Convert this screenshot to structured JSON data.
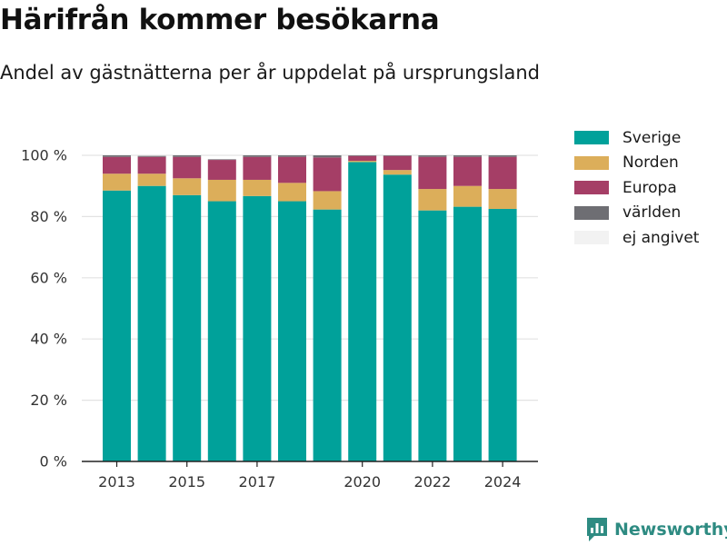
{
  "title": "Härifrån kommer besökarna",
  "subtitle": "Andel av gästnätterna per år uppdelat på ursprungsland",
  "brand": {
    "name": "Newsworthy",
    "icon": "bar-chart-logo-icon",
    "color": "#2e8b82"
  },
  "legend": [
    {
      "label": "Sverige",
      "color": "#00a19a"
    },
    {
      "label": "Norden",
      "color": "#dcae5a"
    },
    {
      "label": "Europa",
      "color": "#a53e66"
    },
    {
      "label": "världen",
      "color": "#6e6e73"
    },
    {
      "label": "ej angivet",
      "color": "#f2f2f2"
    }
  ],
  "chart_data": {
    "type": "bar",
    "stacked": true,
    "categories": [
      "2013",
      "2014",
      "2015",
      "2016",
      "2017",
      "2018",
      "2019",
      "2020",
      "2021",
      "2022",
      "2023",
      "2024"
    ],
    "x_tick_labels": [
      "2013",
      "2015",
      "2017",
      "2020",
      "2022",
      "2024"
    ],
    "y_tick_labels": [
      "0 %",
      "20 %",
      "40 %",
      "60 %",
      "80 %",
      "100 %"
    ],
    "ylim": [
      0,
      100
    ],
    "grid": true,
    "legend_position": "right",
    "series": [
      {
        "name": "Sverige",
        "color": "#00a19a",
        "values": [
          88.5,
          90,
          87,
          85,
          86.7,
          85,
          82.3,
          97.8,
          93.7,
          82,
          83.2,
          82.5
        ]
      },
      {
        "name": "Norden",
        "color": "#dcae5a",
        "values": [
          5.5,
          4,
          5.5,
          7,
          5.3,
          6,
          6,
          0.4,
          1.5,
          7,
          6.8,
          6.5
        ]
      },
      {
        "name": "Europa",
        "color": "#a53e66",
        "values": [
          5.5,
          5.5,
          7,
          6.5,
          7.5,
          8.5,
          11,
          1.6,
          4.6,
          10.5,
          9.5,
          10.5
        ]
      },
      {
        "name": "världen",
        "color": "#6e6e73",
        "values": [
          0.5,
          0.3,
          0.5,
          0.2,
          0.5,
          0.5,
          0.7,
          0.2,
          0.2,
          0.5,
          0.5,
          0.5
        ]
      },
      {
        "name": "ej angivet",
        "color": "#f2f2f2",
        "values": [
          0,
          0,
          0,
          0,
          0,
          0,
          0,
          0,
          0,
          0,
          0,
          0
        ]
      }
    ]
  }
}
